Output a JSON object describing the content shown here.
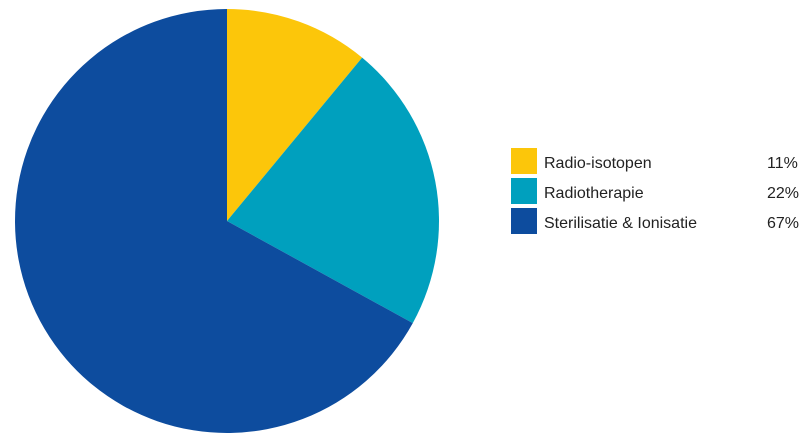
{
  "chart_data": {
    "type": "pie",
    "slices": [
      {
        "label": "Radio-isotopen",
        "value": 11,
        "value_label": "11%",
        "color": "#FCC60A"
      },
      {
        "label": "Radiotherapie",
        "value": 22,
        "value_label": "22%",
        "color": "#00A0BE"
      },
      {
        "label": "Sterilisatie & Ionisatie",
        "value": 67,
        "value_label": "67%",
        "color": "#0D4C9E"
      }
    ],
    "legend_position": "right",
    "start": "top",
    "direction": "clockwise"
  }
}
